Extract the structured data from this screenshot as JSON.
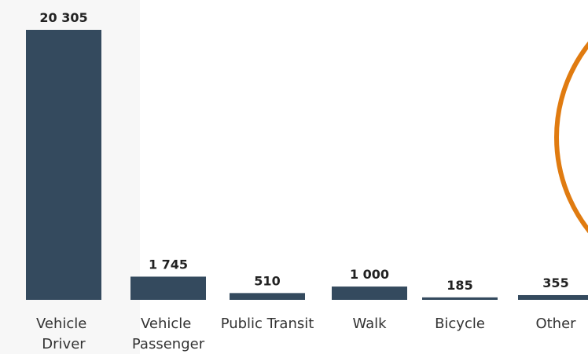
{
  "chart_data": {
    "type": "bar",
    "categories": [
      "Vehicle Driver",
      "Vehicle Passenger",
      "Public Transit",
      "Walk",
      "Bicycle",
      "Other"
    ],
    "values": [
      20305,
      1745,
      510,
      1000,
      185,
      355
    ],
    "value_labels": [
      "20 305",
      "1 745",
      "510",
      "1 000",
      "185",
      "355"
    ],
    "color": "#344a5e"
  }
}
